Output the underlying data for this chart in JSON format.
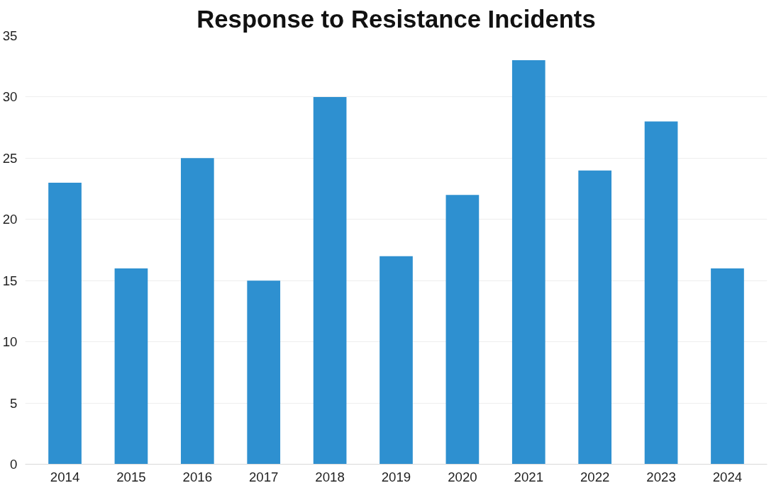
{
  "chart_data": {
    "type": "bar",
    "title": "Response to Resistance Incidents",
    "categories": [
      "2014",
      "2015",
      "2016",
      "2017",
      "2018",
      "2019",
      "2020",
      "2021",
      "2022",
      "2023",
      "2024"
    ],
    "values": [
      23,
      16,
      25,
      15,
      30,
      17,
      22,
      33,
      24,
      28,
      16
    ],
    "color": "#2e90d0",
    "ylim": [
      0,
      35
    ],
    "yticks": [
      0,
      5,
      10,
      15,
      20,
      25,
      30,
      35
    ],
    "grid": "y"
  }
}
